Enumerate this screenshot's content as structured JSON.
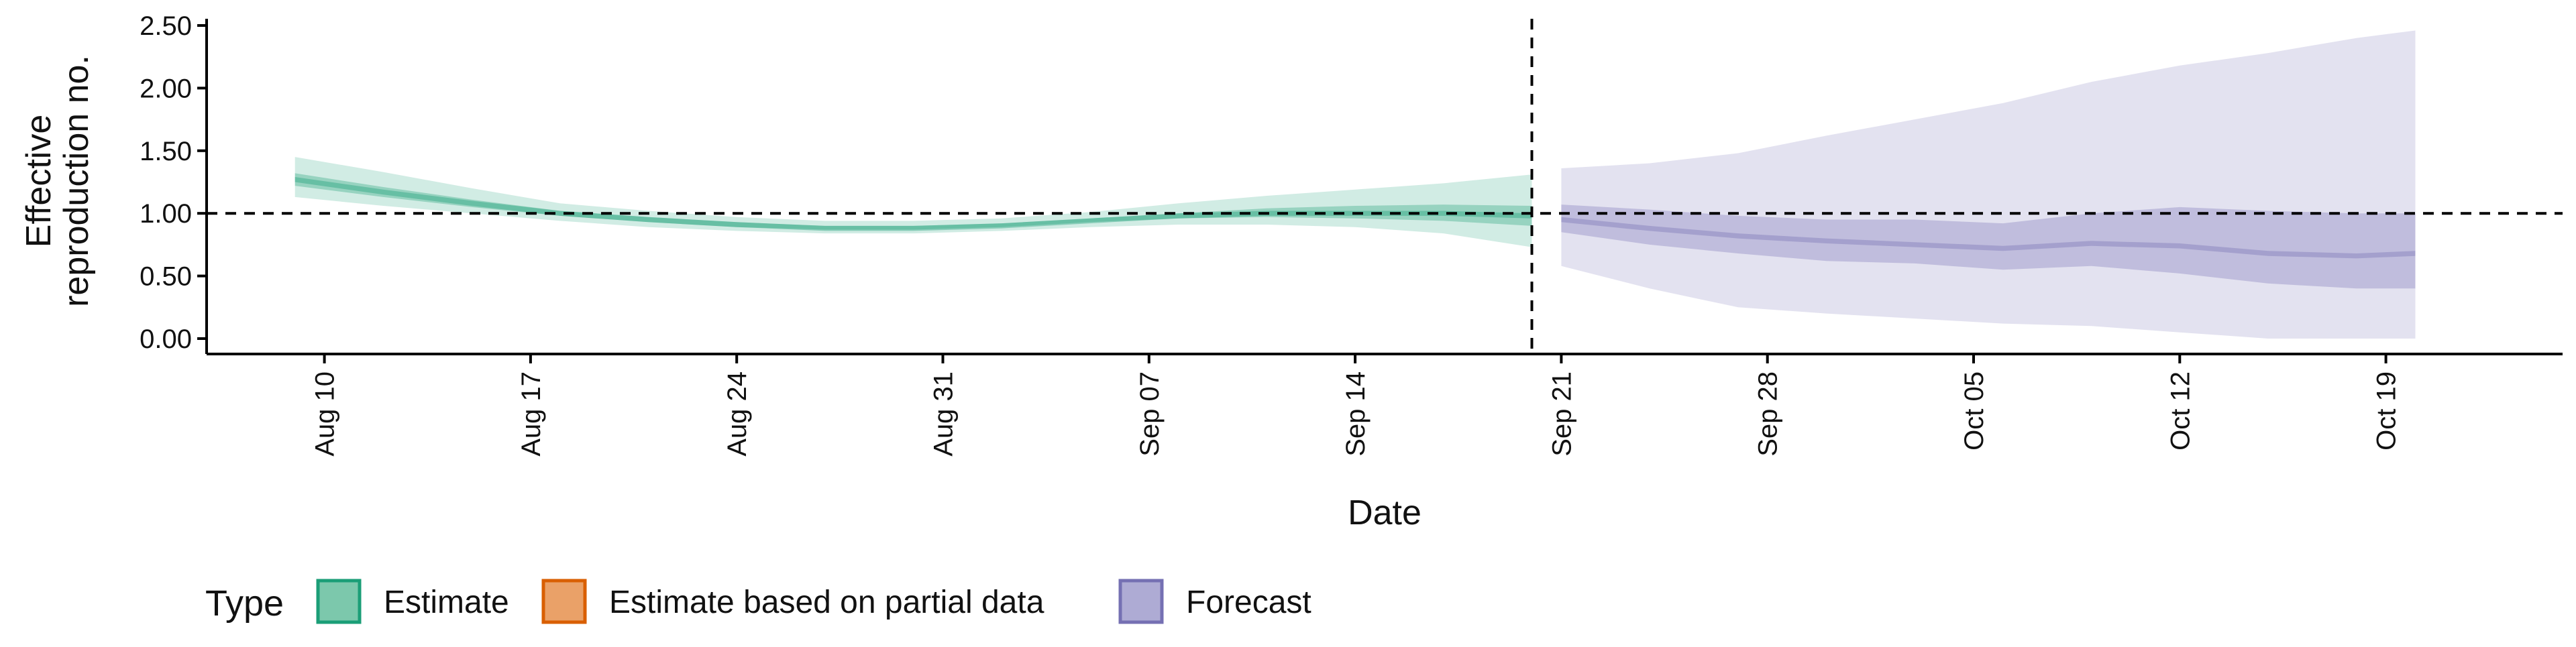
{
  "chart_data": {
    "type": "area",
    "xlabel": "Date",
    "ylabel_lines": [
      "Effective",
      "reproduction no."
    ],
    "ylim": [
      0.0,
      2.5
    ],
    "y_ticks": [
      0.0,
      0.5,
      1.0,
      1.5,
      2.0,
      2.5
    ],
    "y_tick_labels": [
      "0.00",
      "0.50",
      "1.00",
      "1.50",
      "2.00",
      "2.50"
    ],
    "x_range": [
      "2020-08-06",
      "2020-10-25"
    ],
    "x_ticks": [
      "2020-08-10",
      "2020-08-17",
      "2020-08-24",
      "2020-08-31",
      "2020-09-07",
      "2020-09-14",
      "2020-09-21",
      "2020-09-28",
      "2020-10-05",
      "2020-10-12",
      "2020-10-19"
    ],
    "x_tick_labels": [
      "Aug 10",
      "Aug 17",
      "Aug 24",
      "Aug 31",
      "Sep 07",
      "Sep 14",
      "Sep 21",
      "Sep 28",
      "Oct 05",
      "Oct 12",
      "Oct 19"
    ],
    "reference_line_y": 1.0,
    "divider_date": "2020-09-20",
    "grid": false,
    "legend": {
      "title": "Type",
      "position": "bottom-left",
      "items": [
        {
          "label": "Estimate",
          "fill": "#7cc8ac",
          "stroke": "#1b9e77"
        },
        {
          "label": "Estimate based on partial data",
          "fill": "#eaa168",
          "stroke": "#d95f02"
        },
        {
          "label": "Forecast",
          "fill": "#aeabd4",
          "stroke": "#7570b3"
        }
      ]
    },
    "series": [
      {
        "name": "Estimate",
        "color": "#1b9e77",
        "x": [
          "2020-08-09",
          "2020-08-12",
          "2020-08-15",
          "2020-08-18",
          "2020-08-21",
          "2020-08-24",
          "2020-08-27",
          "2020-08-30",
          "2020-09-02",
          "2020-09-05",
          "2020-09-08",
          "2020-09-11",
          "2020-09-14",
          "2020-09-17",
          "2020-09-20"
        ],
        "median": [
          1.27,
          1.17,
          1.08,
          1.0,
          0.95,
          0.91,
          0.88,
          0.88,
          0.9,
          0.94,
          0.98,
          1.0,
          1.0,
          1.0,
          0.98
        ],
        "lower_50": [
          1.22,
          1.13,
          1.05,
          0.98,
          0.93,
          0.89,
          0.87,
          0.87,
          0.89,
          0.93,
          0.96,
          0.97,
          0.96,
          0.94,
          0.9
        ],
        "upper_50": [
          1.32,
          1.21,
          1.11,
          1.02,
          0.97,
          0.93,
          0.9,
          0.9,
          0.92,
          0.96,
          1.0,
          1.04,
          1.06,
          1.07,
          1.06
        ],
        "lower_90": [
          1.13,
          1.06,
          1.0,
          0.94,
          0.89,
          0.86,
          0.84,
          0.84,
          0.86,
          0.89,
          0.91,
          0.91,
          0.89,
          0.84,
          0.73
        ],
        "upper_90": [
          1.45,
          1.33,
          1.2,
          1.08,
          1.02,
          0.97,
          0.94,
          0.94,
          0.96,
          1.01,
          1.08,
          1.14,
          1.19,
          1.24,
          1.31
        ]
      },
      {
        "name": "Forecast",
        "color": "#7570b3",
        "x": [
          "2020-09-21",
          "2020-09-24",
          "2020-09-27",
          "2020-09-30",
          "2020-10-03",
          "2020-10-06",
          "2020-10-09",
          "2020-10-12",
          "2020-10-15",
          "2020-10-18",
          "2020-10-20"
        ],
        "median": [
          0.95,
          0.88,
          0.82,
          0.78,
          0.75,
          0.72,
          0.76,
          0.74,
          0.68,
          0.66,
          0.68
        ],
        "lower_50": [
          0.85,
          0.75,
          0.68,
          0.62,
          0.6,
          0.55,
          0.58,
          0.52,
          0.44,
          0.4,
          0.4
        ],
        "upper_50": [
          1.07,
          1.03,
          0.98,
          0.95,
          0.95,
          0.92,
          1.0,
          1.05,
          1.02,
          1.0,
          1.0
        ],
        "lower_90": [
          0.58,
          0.4,
          0.25,
          0.2,
          0.16,
          0.12,
          0.1,
          0.05,
          0.0,
          0.0,
          0.0
        ],
        "upper_90": [
          1.36,
          1.4,
          1.48,
          1.62,
          1.75,
          1.88,
          2.05,
          2.18,
          2.28,
          2.4,
          2.46
        ]
      }
    ]
  }
}
